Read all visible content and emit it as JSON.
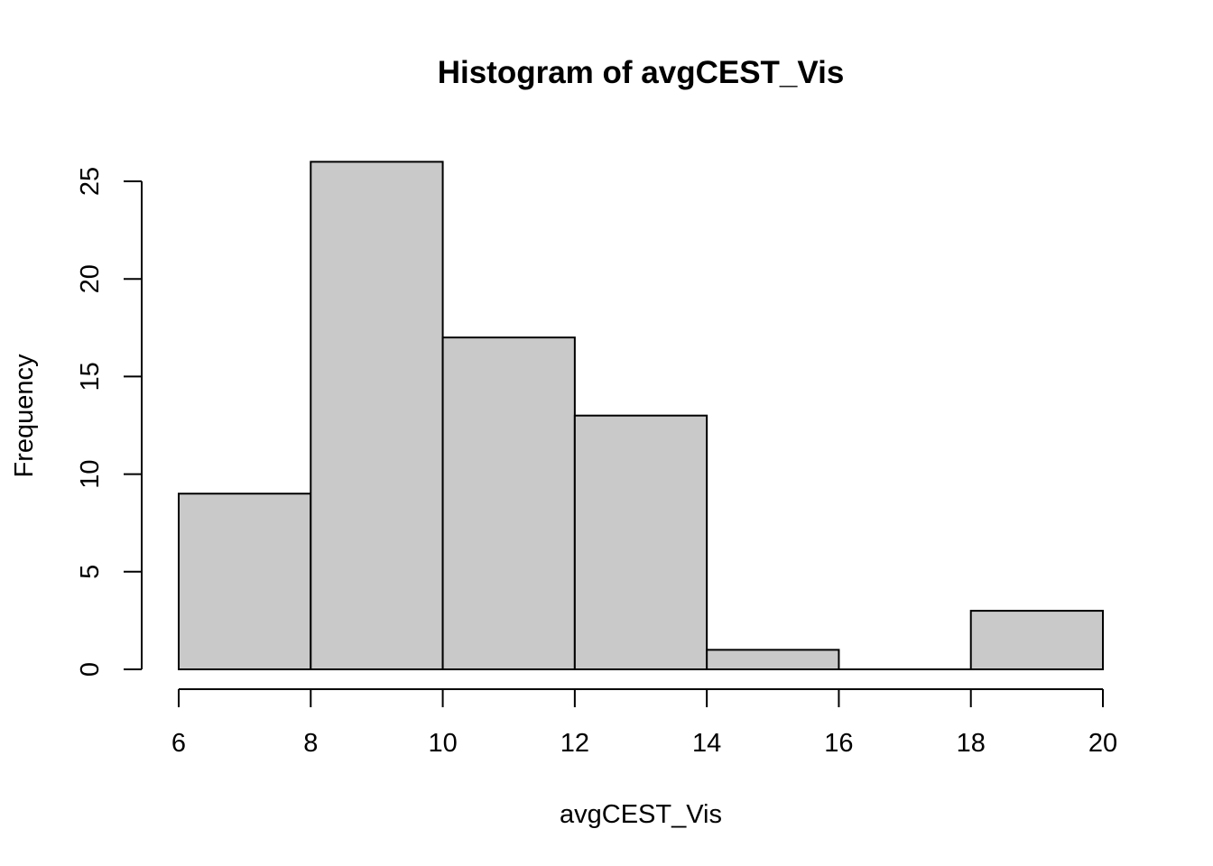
{
  "chart_data": {
    "type": "bar",
    "title": "Histogram of avgCEST_Vis",
    "xlabel": "avgCEST_Vis",
    "ylabel": "Frequency",
    "bins": [
      {
        "from": 6,
        "to": 8,
        "count": 9
      },
      {
        "from": 8,
        "to": 10,
        "count": 26
      },
      {
        "from": 10,
        "to": 12,
        "count": 17
      },
      {
        "from": 12,
        "to": 14,
        "count": 13
      },
      {
        "from": 14,
        "to": 16,
        "count": 1
      },
      {
        "from": 16,
        "to": 18,
        "count": 0
      },
      {
        "from": 18,
        "to": 20,
        "count": 3
      }
    ],
    "xlim": [
      6,
      20
    ],
    "ylim": [
      0,
      25
    ],
    "xticks": [
      6,
      8,
      10,
      12,
      14,
      16,
      18,
      20
    ],
    "yticks": [
      0,
      5,
      10,
      15,
      20,
      25
    ],
    "bar_color": "#c9c9c9",
    "grid": false
  }
}
